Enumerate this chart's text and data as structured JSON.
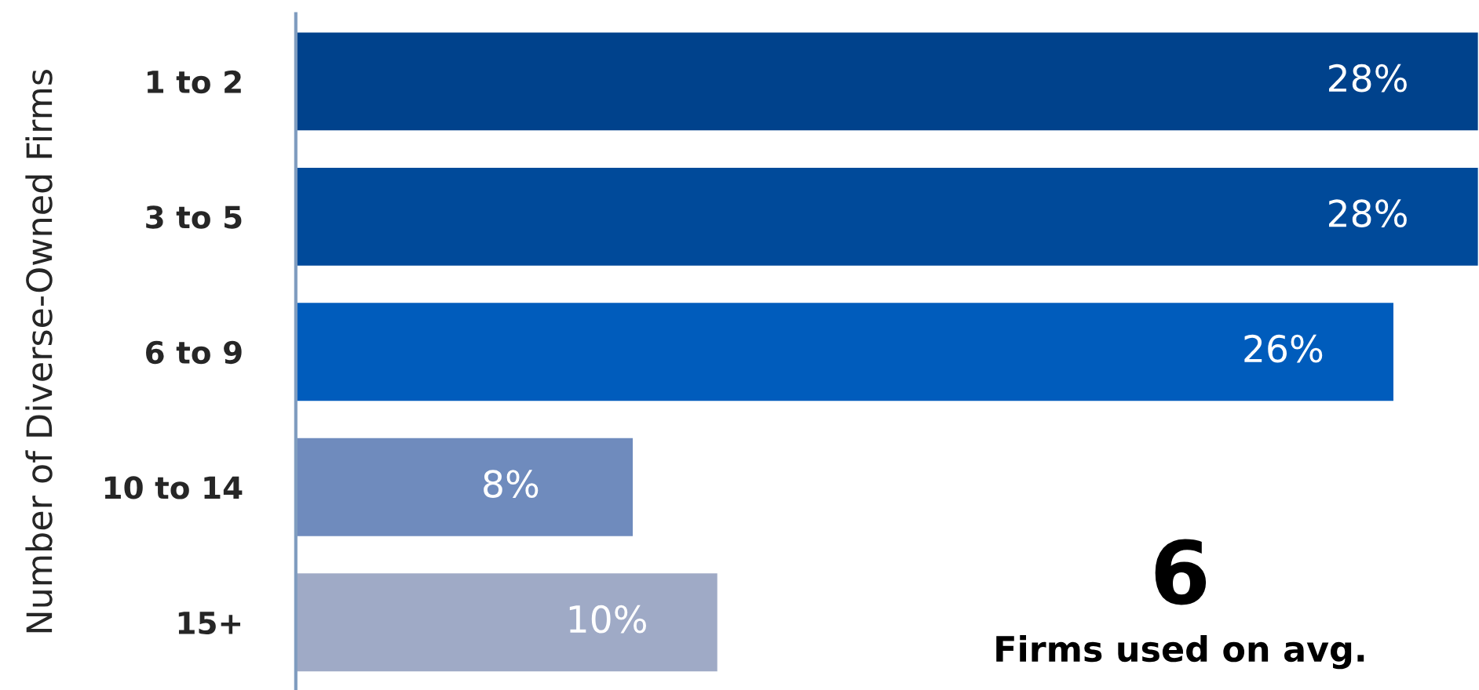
{
  "chart_data": {
    "type": "bar",
    "orientation": "horizontal",
    "ylabel": "Number of Diverse-Owned Firms",
    "categories": [
      "1 to 2",
      "3 to 5",
      "6 to 9",
      "10 to 14",
      "15+"
    ],
    "values": [
      28,
      28,
      26,
      8,
      10
    ],
    "value_labels": [
      "28%",
      "28%",
      "26%",
      "8%",
      "10%"
    ],
    "colors": [
      "#00428c",
      "#004a9a",
      "#005cbc",
      "#6f8bbd",
      "#9faac6"
    ],
    "xlim": [
      0,
      28
    ],
    "tick_labels": "y",
    "grid": false,
    "legend": false,
    "annotations": [
      "6",
      "Firms used on avg."
    ]
  }
}
